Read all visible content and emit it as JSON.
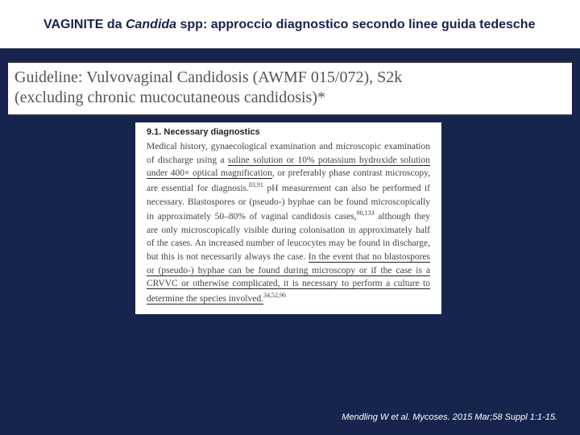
{
  "title": {
    "prefix": "VAGINITE da ",
    "italic": "Candida",
    "suffix": " spp: approccio diagnostico secondo linee guida tedesche"
  },
  "guideline": {
    "line1": "Guideline: Vulvovaginal Candidosis (AWMF 015/072), S2k",
    "line2": "(excluding chronic mucocutaneous candidosis)*"
  },
  "section_heading": "9.1. Necessary diagnostics",
  "body": {
    "p1a": "Medical history, gynaecological examination and microscopic examination of discharge using a ",
    "u1": "saline solution or 10% potassium hydroxide solution under 400× optical magnification",
    "p1b": ", or preferably phase contrast microscopy, are essential for diagnosis.",
    "ref1": "83,91",
    "p1c": " pH measurement can also be performed if necessary. Blastospores or (pseudo-) hyphae can be found microscopically in approximately 50–80% of vaginal candidosis cases,",
    "ref2": "90,133",
    "p1d": " although they are only microscopically visible during colonisation in approximately half of the cases. An increased number of leucocytes may be found in discharge, but this is not necessarily always the case. ",
    "u2": "In the event that no blastospores or (pseudo-) hyphae can be found during microscopy or if the case is a CRVVC or otherwise complicated, it is necessary to perform a culture to determine the species involved.",
    "ref3": "34,52,96"
  },
  "citation": "Mendling W et al. Mycoses. 2015 Mar;58 Suppl 1:1-15.",
  "colors": {
    "background": "#16244e",
    "white": "#ffffff",
    "title_text": "#16244e",
    "body_text": "#444444",
    "guideline_text": "#555555",
    "underline": "#222222"
  },
  "fonts": {
    "title": "Verdana",
    "guideline": "Georgia",
    "body": "Georgia",
    "section_heading": "Arial",
    "title_size_pt": 12,
    "guideline_size_pt": 15,
    "body_size_pt": 8.5,
    "citation_size_pt": 8
  }
}
